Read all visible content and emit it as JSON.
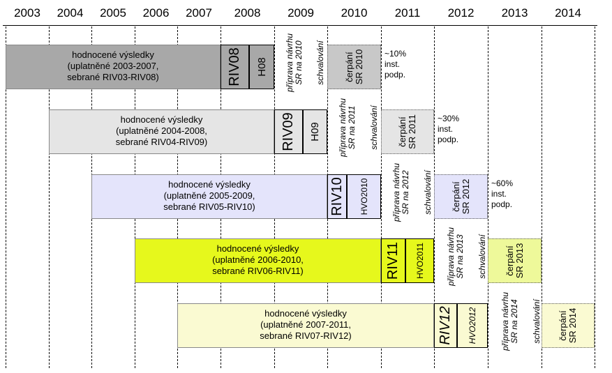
{
  "years": [
    "2003",
    "2004",
    "2005",
    "2006",
    "2007",
    "2008",
    "2009",
    "2010",
    "2011",
    "2012",
    "2013",
    "2014"
  ],
  "rows": [
    {
      "colors": {
        "band": "#a8a8a8",
        "seg": "#c8c8c8"
      },
      "main_lines": [
        "hodnocené výsledky",
        "(uplatněné 2003-2007,",
        "sebrané RIV03-RIV08)"
      ],
      "riv": "RIV08",
      "h": "H08",
      "prep_lines": [
        "příprava návrhu",
        "SR na 2010"
      ],
      "approve": "schvalování",
      "draw_lines": [
        "čerpání",
        "SR 2010"
      ],
      "note_lines": [
        "~10%",
        "inst.",
        "podp."
      ]
    },
    {
      "colors": {
        "band": "#e5e5e5",
        "seg": "#e5e5e5"
      },
      "main_lines": [
        "hodnocené výsledky",
        "(uplatněné 2004-2008,",
        "sebrané RIV04-RIV09)"
      ],
      "riv": "RIV09",
      "h": "H09",
      "prep_lines": [
        "příprava návrhu",
        "SR na 2011"
      ],
      "approve": "schvalování",
      "draw_lines": [
        "čerpání",
        "SR 2011"
      ],
      "note_lines": [
        "~30%",
        "inst.",
        "podp."
      ]
    },
    {
      "colors": {
        "band": "#e4e4fb",
        "seg": "#e4e4fb"
      },
      "main_lines": [
        "hodnocené výsledky",
        "(uplatněné 2005-2009,",
        "sebrané RIV05-RIV10)"
      ],
      "riv": "RIV10",
      "h": "HVO2010",
      "prep_lines": [
        "příprava návrhu",
        "SR na 2012"
      ],
      "approve": "schvalování",
      "draw_lines": [
        "čerpání",
        "SR 2012"
      ],
      "note_lines": [
        "~60%",
        "inst.",
        "podp."
      ]
    },
    {
      "colors": {
        "band": "#e6f81c",
        "seg": "#eef99a"
      },
      "main_lines": [
        "hodnocené výsledky",
        "(uplatněné 2006-2010,",
        "sebrané RIV06-RIV11)"
      ],
      "riv": "RIV11",
      "h": "HVO2011",
      "prep_lines": [
        "příprava návrhu",
        "SR na 2013"
      ],
      "approve": "schvalování",
      "draw_lines": [
        "čerpání",
        "SR 2013"
      ]
    },
    {
      "colors": {
        "band": "#fafad2",
        "seg": "#fafad2"
      },
      "main_lines": [
        "hodnocené výsledky",
        "(uplatněné 2007-2011,",
        "sebrané RIV07-RIV12)"
      ],
      "riv": "RIV12",
      "h": "HVO2012",
      "prep_lines": [
        "příprava návrhu",
        "SR na 2014"
      ],
      "approve": "schvalování",
      "draw_lines": [
        "čerpání",
        "SR 2014"
      ]
    }
  ]
}
